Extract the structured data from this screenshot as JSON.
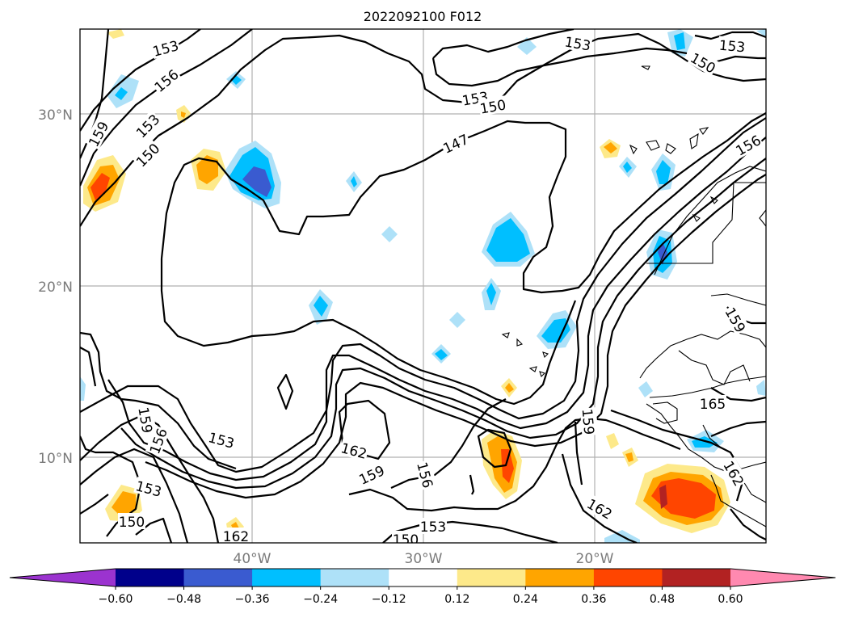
{
  "title": "2022092100 F012",
  "map": {
    "lat_labels": [
      "30°N",
      "20°N",
      "10°N"
    ],
    "lon_labels": [
      "40°W",
      "30°W",
      "20°W"
    ],
    "contour_levels_shown": [
      "147",
      "150",
      "153",
      "156",
      "159",
      "162",
      "165"
    ],
    "contour_labels": [
      {
        "text": "153"
      },
      {
        "text": "156"
      },
      {
        "text": "159"
      },
      {
        "text": "153"
      },
      {
        "text": "150"
      },
      {
        "text": "147"
      },
      {
        "text": "153"
      },
      {
        "text": "150"
      },
      {
        "text": "153"
      },
      {
        "text": "153"
      },
      {
        "text": "150"
      },
      {
        "text": "156"
      },
      {
        "text": "159"
      },
      {
        "text": "159"
      },
      {
        "text": "156"
      },
      {
        "text": "153"
      },
      {
        "text": "162"
      },
      {
        "text": "159"
      },
      {
        "text": "156"
      },
      {
        "text": "153"
      },
      {
        "text": "150"
      },
      {
        "text": "153"
      },
      {
        "text": "150"
      },
      {
        "text": "162"
      },
      {
        "text": "159"
      },
      {
        "text": "165"
      },
      {
        "text": "162"
      },
      {
        "text": "162"
      }
    ]
  },
  "colorbar": {
    "colors": [
      "#9b33cf",
      "#00008b",
      "#3a5bd0",
      "#00bfff",
      "#aee1f8",
      "#ffffff",
      "#fde98a",
      "#ffa500",
      "#ff4500",
      "#b22222",
      "#ff89b0"
    ],
    "tick_labels": [
      "−0.60",
      "−0.48",
      "−0.36",
      "−0.24",
      "−0.12",
      "0.12",
      "0.24",
      "0.36",
      "0.48",
      "0.60"
    ]
  }
}
